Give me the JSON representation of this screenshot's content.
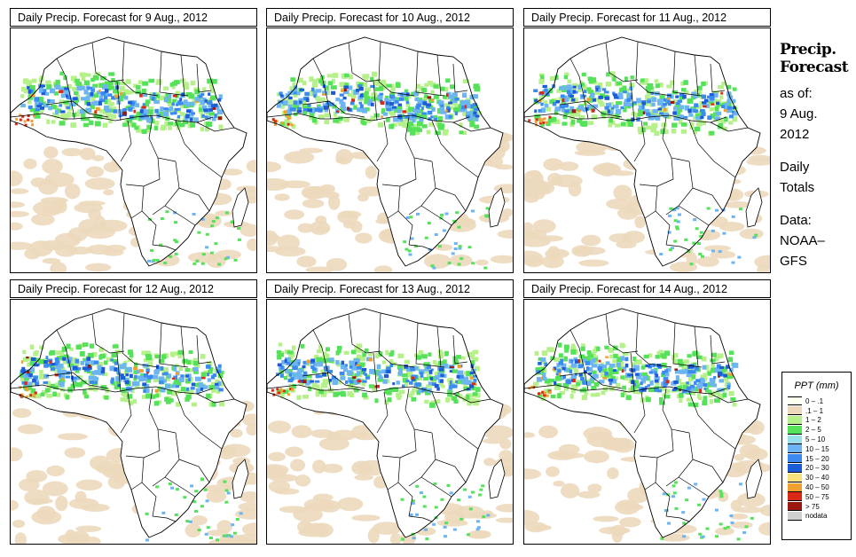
{
  "panels": [
    {
      "title": "Daily Precip. Forecast for  9 Aug., 2012"
    },
    {
      "title": "Daily Precip. Forecast for  10 Aug., 2012"
    },
    {
      "title": "Daily Precip. Forecast for  11 Aug., 2012"
    },
    {
      "title": "Daily Precip. Forecast for  12 Aug., 2012"
    },
    {
      "title": "Daily Precip. Forecast for  13 Aug., 2012"
    },
    {
      "title": "Daily Precip. Forecast for  14 Aug., 2012"
    }
  ],
  "side": {
    "title_line1": "Precip.",
    "title_line2": "Forecast",
    "asof_line1": "as of:",
    "asof_line2": "9 Aug.",
    "asof_line3": "2012",
    "totals_line1": "Daily",
    "totals_line2": "Totals",
    "data_line1": "Data:",
    "data_line2": "NOAA–",
    "data_line3": "GFS"
  },
  "legend": {
    "title": "PPT (mm)",
    "items": [
      {
        "label": "0 – .1",
        "color": "#fffff0"
      },
      {
        "label": ".1 – 1",
        "color": "#ecd9bd"
      },
      {
        "label": "1 – 2",
        "color": "#b6f08a"
      },
      {
        "label": "2 – 5",
        "color": "#55e25a"
      },
      {
        "label": "5 – 10",
        "color": "#9ae0e8"
      },
      {
        "label": "10 – 15",
        "color": "#6cb4f2"
      },
      {
        "label": "15 – 20",
        "color": "#3a8af0"
      },
      {
        "label": "20 – 30",
        "color": "#1c5cd8"
      },
      {
        "label": "30 – 40",
        "color": "#f5e07a"
      },
      {
        "label": "40 – 50",
        "color": "#f0a030"
      },
      {
        "label": "50 – 75",
        "color": "#d82a14"
      },
      {
        "label": "> 75",
        "color": "#9a1a10"
      },
      {
        "label": "nodata",
        "color": "#cfcfcf"
      }
    ]
  }
}
